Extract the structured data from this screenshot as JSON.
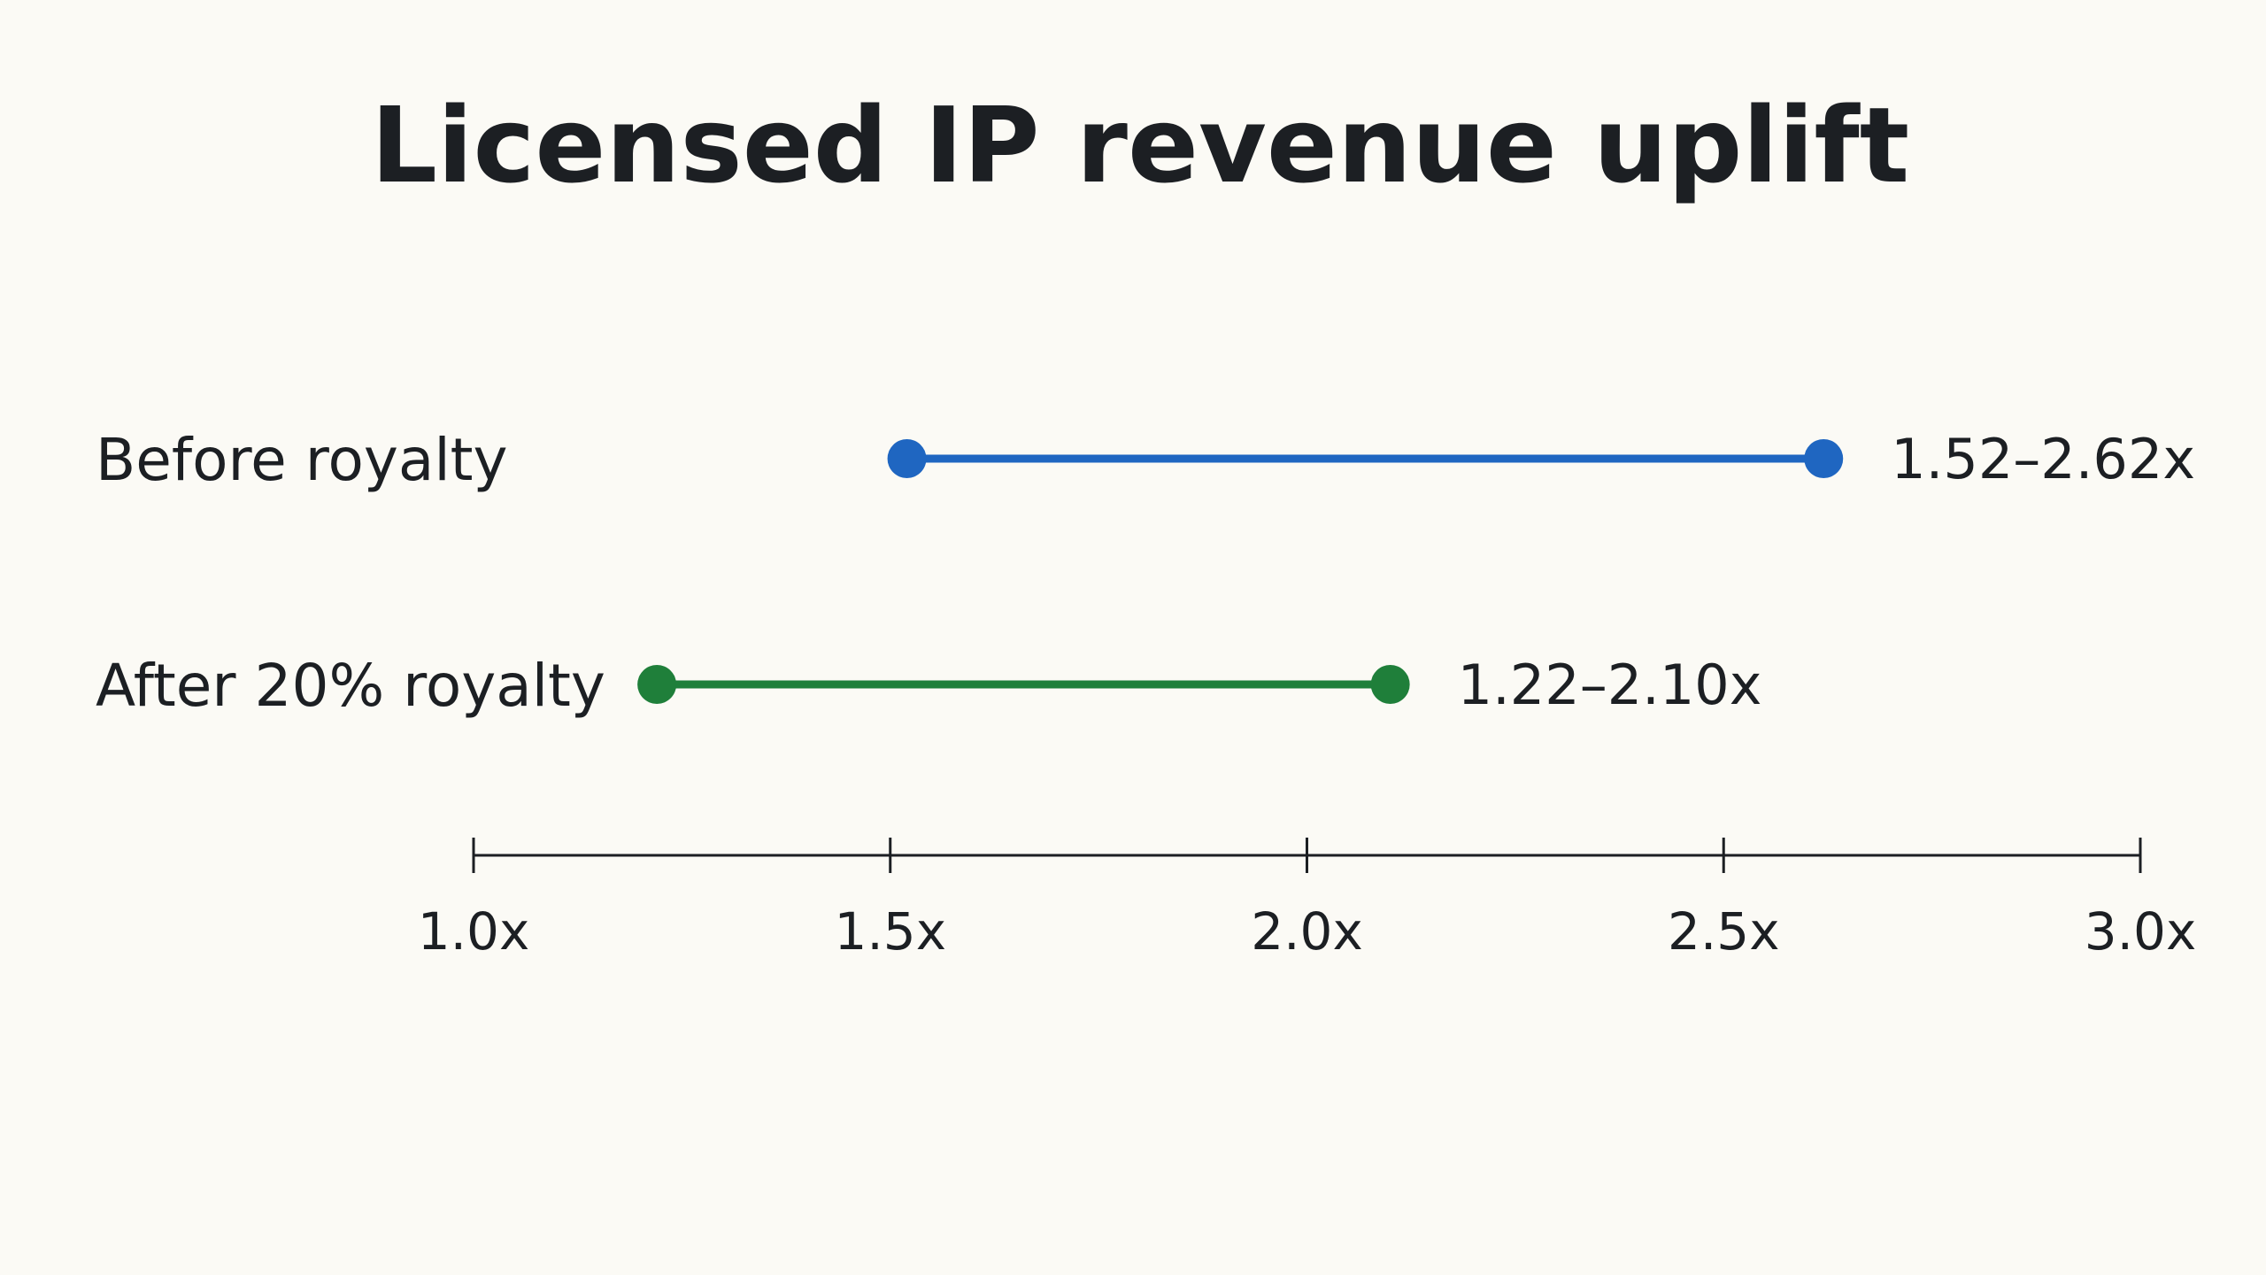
{
  "chart_data": {
    "type": "range",
    "title": "Licensed IP revenue uplift",
    "xlabel": "",
    "ylabel": "",
    "xlim": [
      1.0,
      3.0
    ],
    "grid": false,
    "legend": "none",
    "ticks": [
      {
        "value": 1.0,
        "label": "1.0x"
      },
      {
        "value": 1.5,
        "label": "1.5x"
      },
      {
        "value": 2.0,
        "label": "2.0x"
      },
      {
        "value": 2.5,
        "label": "2.5x"
      },
      {
        "value": 3.0,
        "label": "3.0x"
      }
    ],
    "series": [
      {
        "label": "Before royalty",
        "low": 1.52,
        "high": 2.62,
        "range_label": "1.52–2.62x",
        "color": "#1f66c1"
      },
      {
        "label": "After 20% royalty",
        "low": 1.22,
        "high": 2.1,
        "range_label": "1.22–2.10x",
        "color": "#1f7f3a"
      }
    ]
  }
}
